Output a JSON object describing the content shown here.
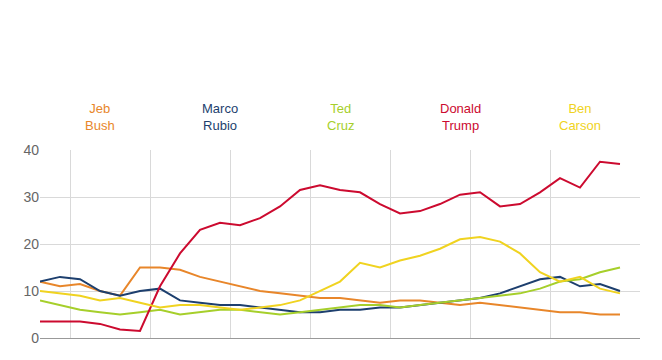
{
  "chart_data": {
    "type": "line",
    "x": [
      0,
      2,
      4,
      6,
      8,
      10,
      12,
      14,
      16,
      18,
      20,
      22,
      24,
      26,
      28,
      30,
      32,
      34,
      36,
      38,
      40,
      42,
      44,
      46,
      48,
      50,
      52,
      54,
      56,
      58
    ],
    "xlim": [
      0,
      60
    ],
    "xticks": [
      3,
      11,
      19,
      27,
      35,
      43,
      51
    ],
    "ylim": [
      0,
      40
    ],
    "yticks": [
      0,
      10,
      20,
      30,
      40
    ],
    "grid": true,
    "tick_labels": "y",
    "series": [
      {
        "name": "Jeb Bush",
        "color": "#e8862a",
        "values": [
          12,
          11,
          11.5,
          10,
          9,
          15,
          15,
          14.5,
          13,
          12,
          11,
          10,
          9.5,
          9,
          8.5,
          8.5,
          8,
          7.5,
          8,
          8,
          7.5,
          7,
          7.5,
          7,
          6.5,
          6,
          5.5,
          5.5,
          5,
          5
        ]
      },
      {
        "name": "Marco Rubio",
        "color": "#1d3f6e",
        "values": [
          12,
          13,
          12.5,
          10,
          9,
          10,
          10.5,
          8,
          7.5,
          7,
          7,
          6.5,
          6,
          5.5,
          5.5,
          6,
          6,
          6.5,
          6.5,
          7,
          7.5,
          8,
          8.5,
          9.5,
          11,
          12.5,
          13,
          11,
          11.5,
          10
        ]
      },
      {
        "name": "Ted Cruz",
        "color": "#a6cf2b",
        "values": [
          8,
          7,
          6,
          5.5,
          5,
          5.5,
          6,
          5,
          5.5,
          6,
          6,
          5.5,
          5,
          5.5,
          6,
          6.5,
          7,
          7,
          6.5,
          7,
          7.5,
          8,
          8.5,
          9,
          9.5,
          10.5,
          12,
          12.5,
          14,
          15
        ]
      },
      {
        "name": "Donald Trump",
        "color": "#cc0a2f",
        "values": [
          3.5,
          3.5,
          3.5,
          3,
          1.8,
          1.5,
          11,
          18,
          23,
          24.5,
          24,
          25.5,
          28,
          31.5,
          32.5,
          31.5,
          31,
          28.5,
          26.5,
          27,
          28.5,
          30.5,
          31,
          28,
          28.5,
          31,
          34,
          32,
          37.5,
          37
        ]
      },
      {
        "name": "Ben Carson",
        "color": "#f0d320",
        "values": [
          10,
          9.5,
          9,
          8,
          8.5,
          7.5,
          6.5,
          7,
          7,
          6.5,
          6,
          6.5,
          7,
          8,
          10,
          12,
          16,
          15,
          16.5,
          17.5,
          19,
          21,
          21.5,
          20.5,
          18,
          14,
          12,
          13,
          10.5,
          9.5
        ]
      }
    ]
  }
}
